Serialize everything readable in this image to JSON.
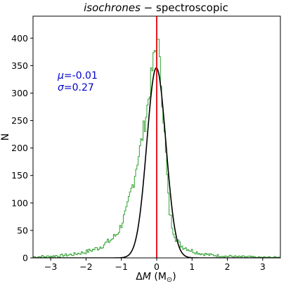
{
  "chart_data": {
    "type": "histogram",
    "title_italic": "isochrones",
    "title_rest": " − spectroscopic",
    "xlabel_delta": "Δ",
    "xlabel_var": "M",
    "xlabel_unit": " (M",
    "xlabel_sub": "⊙",
    "xlabel_close": ")",
    "ylabel": "N",
    "xlim": [
      -3.5,
      3.5
    ],
    "ylim": [
      0,
      440
    ],
    "xticks": [
      -3,
      -2,
      -1,
      0,
      1,
      2,
      3
    ],
    "xtick_labels": [
      "−3",
      "−2",
      "−1",
      "0",
      "1",
      "2",
      "3"
    ],
    "yticks": [
      0,
      50,
      100,
      150,
      200,
      250,
      300,
      350,
      400
    ],
    "ytick_labels": [
      "0",
      "50",
      "100",
      "150",
      "200",
      "250",
      "300",
      "350",
      "400"
    ],
    "annotation": {
      "mu_symbol": "μ",
      "mu_text": "=-0.01",
      "sigma_symbol": "σ",
      "sigma_text": "=0.27",
      "color": "#0000cc"
    },
    "histogram": {
      "color": "#2ca02c",
      "bin_width": 0.035,
      "bin_centers": [
        -3.45,
        -3.35,
        -3.25,
        -3.15,
        -3.05,
        -2.95,
        -2.85,
        -2.75,
        -2.65,
        -2.55,
        -2.45,
        -2.35,
        -2.25,
        -2.15,
        -2.05,
        -1.95,
        -1.85,
        -1.75,
        -1.65,
        -1.55,
        -1.45,
        -1.35,
        -1.25,
        -1.15,
        -1.05,
        -0.95,
        -0.85,
        -0.75,
        -0.65,
        -0.55,
        -0.45,
        -0.35,
        -0.25,
        -0.15,
        -0.05,
        0.05,
        0.15,
        0.25,
        0.35,
        0.45,
        0.55,
        0.65,
        0.75,
        0.85,
        0.95,
        1.05,
        1.15,
        1.25,
        1.35,
        1.45,
        1.55,
        1.65,
        1.75,
        1.85,
        1.95,
        2.05,
        2.15,
        2.25,
        2.35,
        2.45,
        2.55,
        2.65,
        2.75,
        2.85,
        2.95,
        3.05,
        3.15,
        3.25,
        3.35,
        3.45
      ],
      "counts": [
        2,
        2,
        3,
        2,
        3,
        3,
        4,
        3,
        5,
        5,
        6,
        6,
        8,
        9,
        10,
        12,
        14,
        16,
        18,
        22,
        26,
        30,
        35,
        42,
        52,
        70,
        85,
        115,
        140,
        175,
        205,
        240,
        280,
        330,
        375,
        380,
        300,
        200,
        90,
        55,
        35,
        25,
        20,
        18,
        14,
        12,
        10,
        8,
        7,
        6,
        5,
        5,
        4,
        4,
        3,
        3,
        3,
        2,
        2,
        2,
        2,
        2,
        1,
        1,
        1,
        1,
        1,
        1,
        1,
        1
      ]
    },
    "gaussian": {
      "mu": -0.01,
      "sigma": 0.27,
      "peak": 346,
      "color": "#000000"
    },
    "vline": {
      "x": 0,
      "color": "#e8000b"
    }
  }
}
